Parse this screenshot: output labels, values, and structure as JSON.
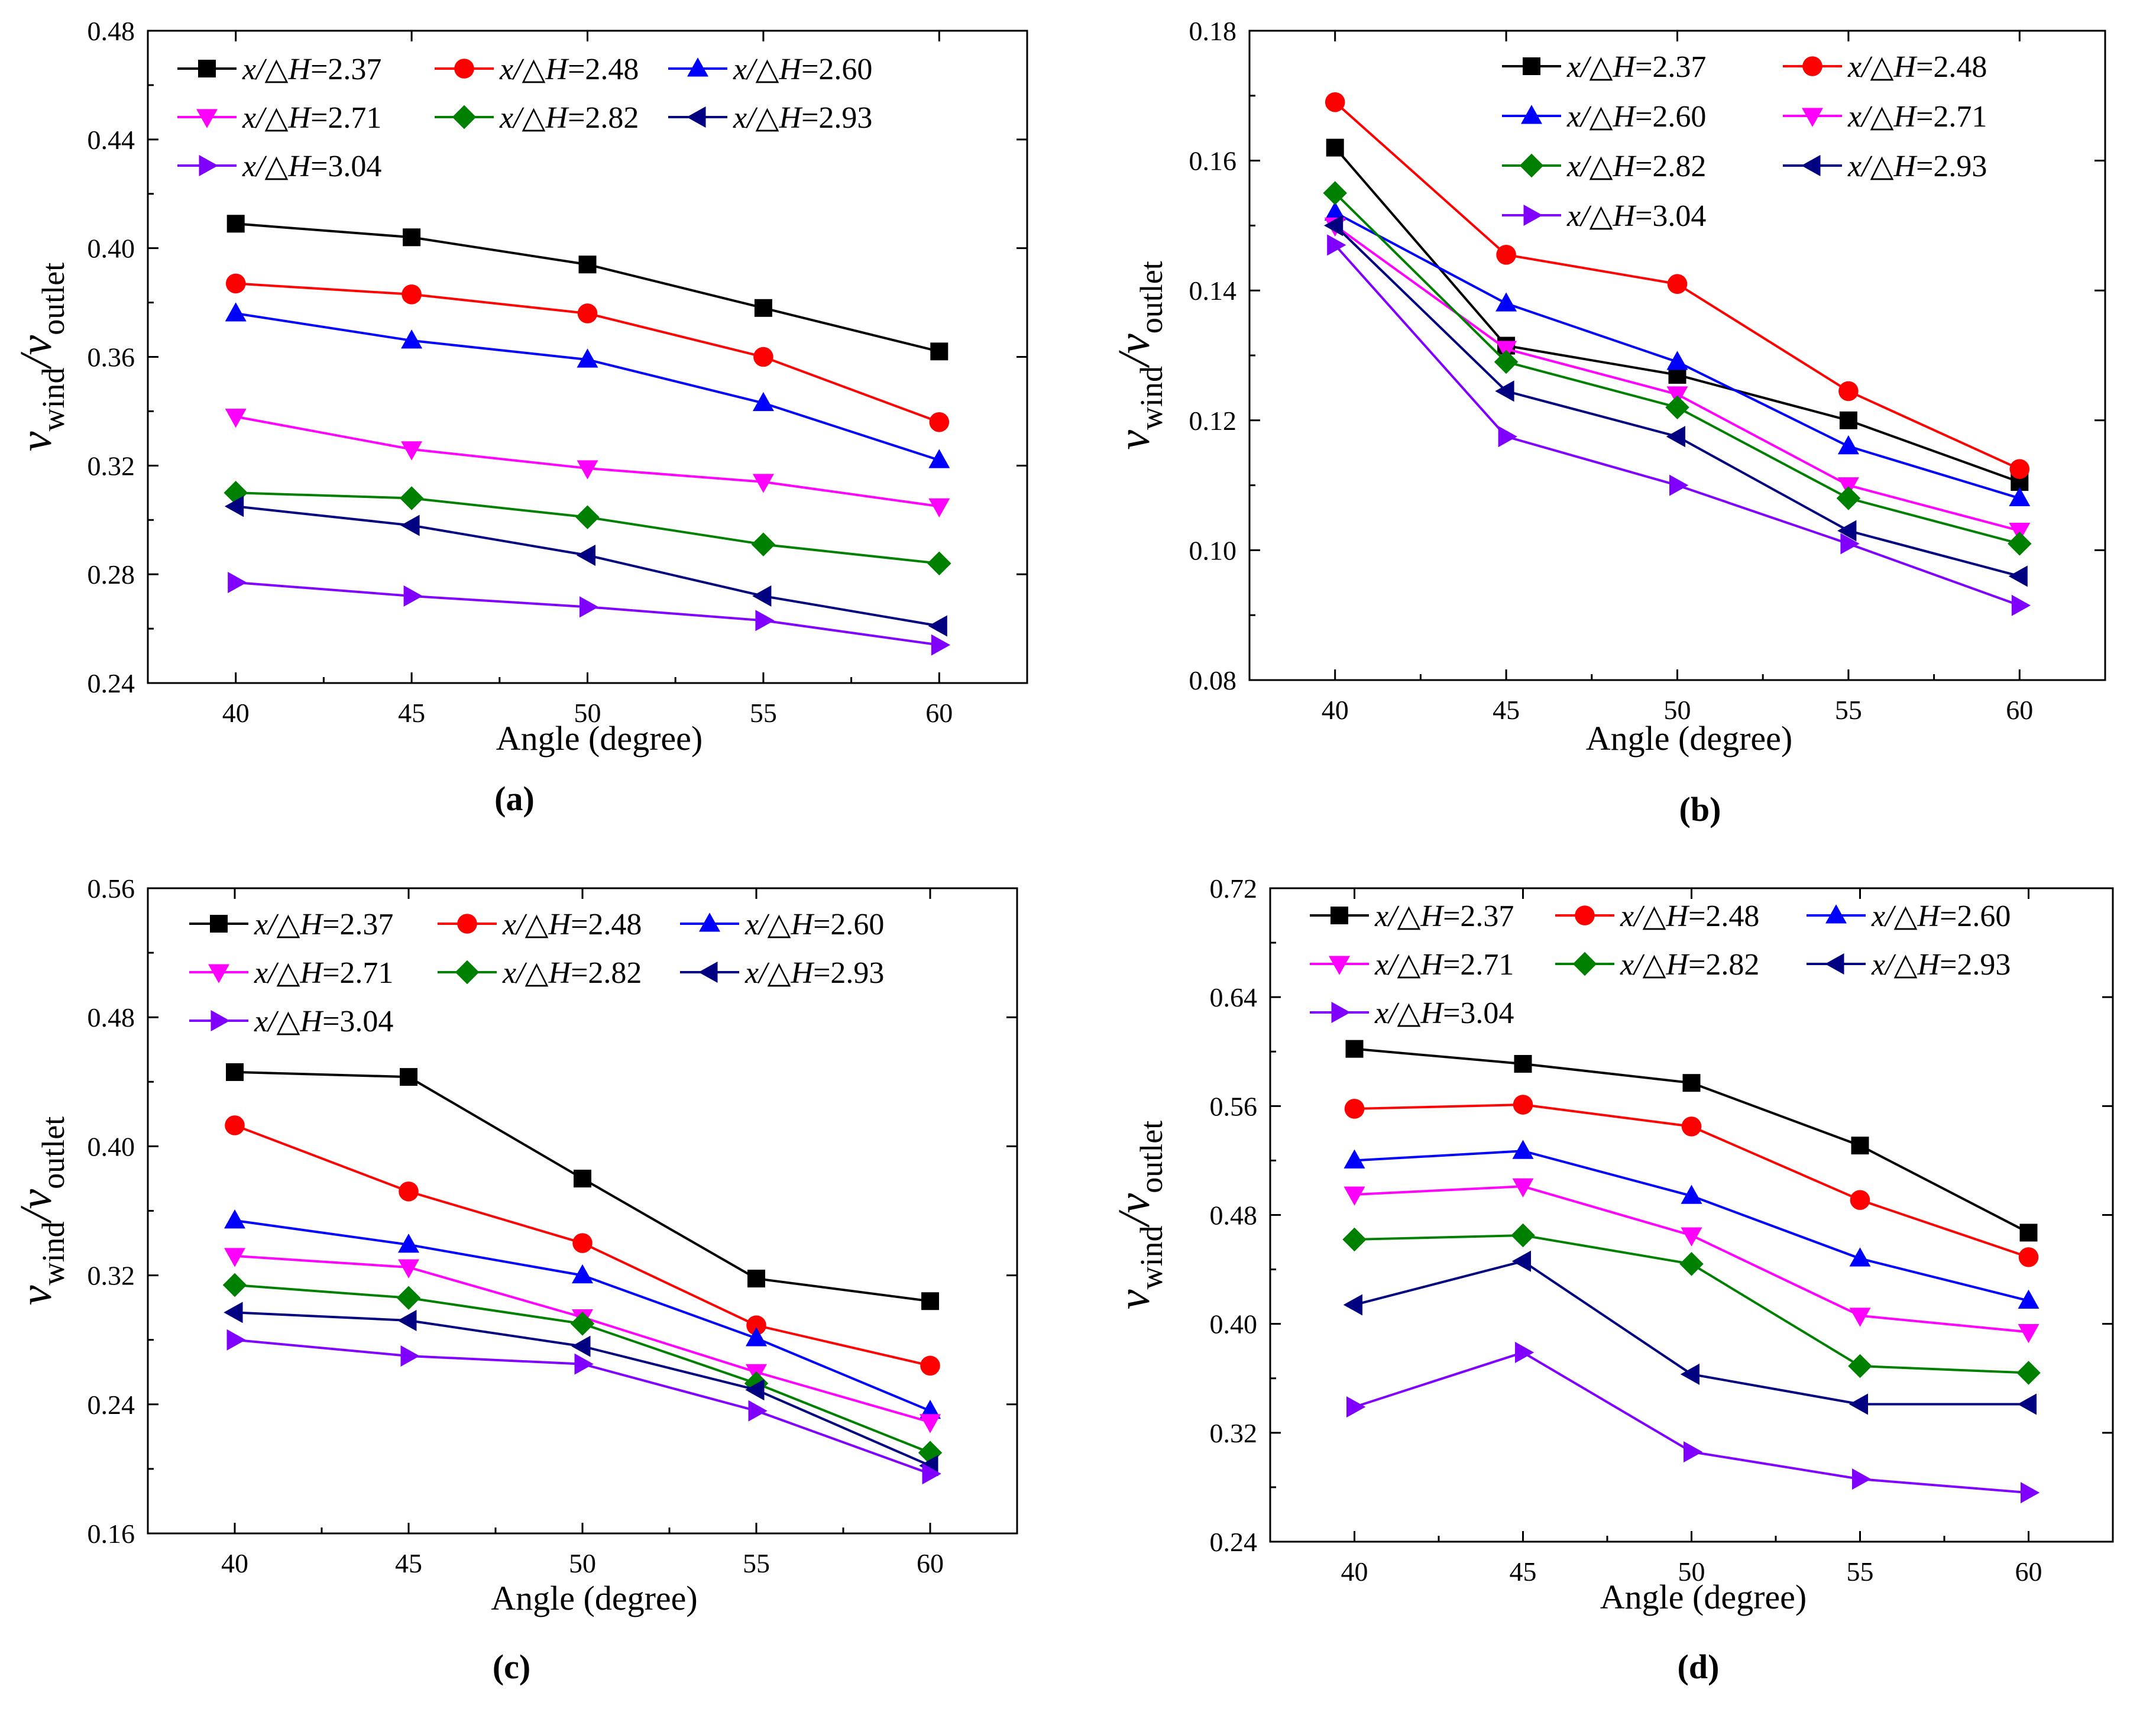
{
  "chart_data": [
    {
      "panel": "(a)",
      "type": "line",
      "x": [
        40,
        45,
        50,
        55,
        60
      ],
      "xlabel": "Angle (degree)",
      "ylabel": {
        "v1": "v",
        "sub1": "wind",
        "slash": "/",
        "v2": "v",
        "sub2": "outlet"
      },
      "ylim": [
        0.24,
        0.48
      ],
      "yticks": [
        "0.24",
        "0.28",
        "0.32",
        "0.36",
        "0.40",
        "0.44",
        "0.48"
      ],
      "xticks": [
        "40",
        "45",
        "50",
        "55",
        "60"
      ],
      "legend_position": "top",
      "series": [
        {
          "name": "x/△H=2.37",
          "prefix": "x/△H",
          "value": "=2.37",
          "values": [
            0.409,
            0.404,
            0.394,
            0.378,
            0.362
          ]
        },
        {
          "name": "x/△H=2.48",
          "prefix": "x/△H",
          "value": "=2.48",
          "values": [
            0.387,
            0.383,
            0.376,
            0.36,
            0.336
          ]
        },
        {
          "name": "x/△H=2.60",
          "prefix": "x/△H",
          "value": "=2.60",
          "values": [
            0.376,
            0.366,
            0.359,
            0.343,
            0.322
          ]
        },
        {
          "name": "x/△H=2.71",
          "prefix": "x/△H",
          "value": "=2.71",
          "values": [
            0.338,
            0.326,
            0.319,
            0.314,
            0.305
          ]
        },
        {
          "name": "x/△H=2.82",
          "prefix": "x/△H",
          "value": "=2.82",
          "values": [
            0.31,
            0.308,
            0.301,
            0.291,
            0.284
          ]
        },
        {
          "name": "x/△H=2.93",
          "prefix": "x/△H",
          "value": "=2.93",
          "values": [
            0.305,
            0.298,
            0.287,
            0.272,
            0.261
          ]
        },
        {
          "name": "x/△H=3.04",
          "prefix": "x/△H",
          "value": "=3.04",
          "values": [
            0.277,
            0.272,
            0.268,
            0.263,
            0.254
          ]
        }
      ]
    },
    {
      "panel": "(b)",
      "type": "line",
      "x": [
        40,
        45,
        50,
        55,
        60
      ],
      "xlabel": "Angle (degree)",
      "ylabel": {
        "v1": "v",
        "sub1": "wind",
        "slash": "/",
        "v2": "v",
        "sub2": "outlet"
      },
      "ylim": [
        0.08,
        0.18
      ],
      "yticks": [
        "0.08",
        "0.10",
        "0.12",
        "0.14",
        "0.16",
        "0.18"
      ],
      "xticks": [
        "40",
        "45",
        "50",
        "55",
        "60"
      ],
      "legend_position": "top",
      "series": [
        {
          "name": "x/△H=2.37",
          "prefix": "x/△H",
          "value": "=2.37",
          "values": [
            0.162,
            0.1315,
            0.127,
            0.12,
            0.1105
          ]
        },
        {
          "name": "x/△H=2.48",
          "prefix": "x/△H",
          "value": "=2.48",
          "values": [
            0.169,
            0.1455,
            0.141,
            0.1245,
            0.1125
          ]
        },
        {
          "name": "x/△H=2.60",
          "prefix": "x/△H",
          "value": "=2.60",
          "values": [
            0.152,
            0.138,
            0.129,
            0.116,
            0.108
          ]
        },
        {
          "name": "x/△H=2.71",
          "prefix": "x/△H",
          "value": "=2.71",
          "values": [
            0.15,
            0.131,
            0.124,
            0.11,
            0.103
          ]
        },
        {
          "name": "x/△H=2.82",
          "prefix": "x/△H",
          "value": "=2.82",
          "values": [
            0.155,
            0.129,
            0.122,
            0.108,
            0.101
          ]
        },
        {
          "name": "x/△H=2.93",
          "prefix": "x/△H",
          "value": "=2.93",
          "values": [
            0.15,
            0.1245,
            0.1175,
            0.103,
            0.096
          ]
        },
        {
          "name": "x/△H=3.04",
          "prefix": "x/△H",
          "value": "=3.04",
          "values": [
            0.147,
            0.1175,
            0.11,
            0.101,
            0.0915
          ]
        }
      ]
    },
    {
      "panel": "(c)",
      "type": "line",
      "x": [
        40,
        45,
        50,
        55,
        60
      ],
      "xlabel": "Angle (degree)",
      "ylabel": {
        "v1": "v",
        "sub1": "wind",
        "slash": "/",
        "v2": "v",
        "sub2": "outlet"
      },
      "ylim": [
        0.16,
        0.56
      ],
      "yticks": [
        "0.16",
        "0.24",
        "0.32",
        "0.40",
        "0.48",
        "0.56"
      ],
      "xticks": [
        "40",
        "45",
        "50",
        "55",
        "60"
      ],
      "legend_position": "top",
      "series": [
        {
          "name": "x/△H=2.37",
          "prefix": "x/△H",
          "value": "=2.37",
          "values": [
            0.446,
            0.443,
            0.38,
            0.318,
            0.304
          ]
        },
        {
          "name": "x/△H=2.48",
          "prefix": "x/△H",
          "value": "=2.48",
          "values": [
            0.413,
            0.372,
            0.34,
            0.289,
            0.264
          ]
        },
        {
          "name": "x/△H=2.60",
          "prefix": "x/△H",
          "value": "=2.60",
          "values": [
            0.354,
            0.339,
            0.32,
            0.281,
            0.236
          ]
        },
        {
          "name": "x/△H=2.71",
          "prefix": "x/△H",
          "value": "=2.71",
          "values": [
            0.332,
            0.325,
            0.294,
            0.26,
            0.229
          ]
        },
        {
          "name": "x/△H=2.82",
          "prefix": "x/△H",
          "value": "=2.82",
          "values": [
            0.314,
            0.306,
            0.29,
            0.253,
            0.21
          ]
        },
        {
          "name": "x/△H=2.93",
          "prefix": "x/△H",
          "value": "=2.93",
          "values": [
            0.297,
            0.292,
            0.276,
            0.249,
            0.202
          ]
        },
        {
          "name": "x/△H=3.04",
          "prefix": "x/△H",
          "value": "=3.04",
          "values": [
            0.28,
            0.27,
            0.265,
            0.236,
            0.197
          ]
        }
      ]
    },
    {
      "panel": "(d)",
      "type": "line",
      "x": [
        40,
        45,
        50,
        55,
        60
      ],
      "xlabel": "Angle (degree)",
      "ylabel": {
        "v1": "v",
        "sub1": "wind",
        "slash": "/",
        "v2": "v",
        "sub2": "outlet"
      },
      "ylim": [
        0.24,
        0.72
      ],
      "yticks": [
        "0.24",
        "0.32",
        "0.40",
        "0.48",
        "0.56",
        "0.64",
        "0.72"
      ],
      "xticks": [
        "40",
        "45",
        "50",
        "55",
        "60"
      ],
      "legend_position": "top",
      "series": [
        {
          "name": "x/△H=2.37",
          "prefix": "x/△H",
          "value": "=2.37",
          "values": [
            0.602,
            0.591,
            0.577,
            0.531,
            0.467
          ]
        },
        {
          "name": "x/△H=2.48",
          "prefix": "x/△H",
          "value": "=2.48",
          "values": [
            0.558,
            0.561,
            0.545,
            0.491,
            0.449
          ]
        },
        {
          "name": "x/△H=2.60",
          "prefix": "x/△H",
          "value": "=2.60",
          "values": [
            0.52,
            0.527,
            0.494,
            0.448,
            0.417
          ]
        },
        {
          "name": "x/△H=2.71",
          "prefix": "x/△H",
          "value": "=2.71",
          "values": [
            0.495,
            0.501,
            0.465,
            0.406,
            0.394
          ]
        },
        {
          "name": "x/△H=2.82",
          "prefix": "x/△H",
          "value": "=2.82",
          "values": [
            0.462,
            0.465,
            0.444,
            0.369,
            0.364
          ]
        },
        {
          "name": "x/△H=2.93",
          "prefix": "x/△H",
          "value": "=2.93",
          "values": [
            0.414,
            0.446,
            0.363,
            0.341,
            0.341
          ]
        },
        {
          "name": "x/△H=3.04",
          "prefix": "x/△H",
          "value": "=3.04",
          "values": [
            0.339,
            0.379,
            0.306,
            0.286,
            0.276
          ]
        }
      ]
    }
  ],
  "styles": {
    "colors": [
      "#000000",
      "#ff0000",
      "#0000ff",
      "#ff00ff",
      "#008000",
      "#000080",
      "#8000ff"
    ],
    "markers": [
      "square",
      "circle",
      "triangle-up",
      "triangle-down",
      "diamond",
      "triangle-left",
      "triangle-right"
    ]
  }
}
